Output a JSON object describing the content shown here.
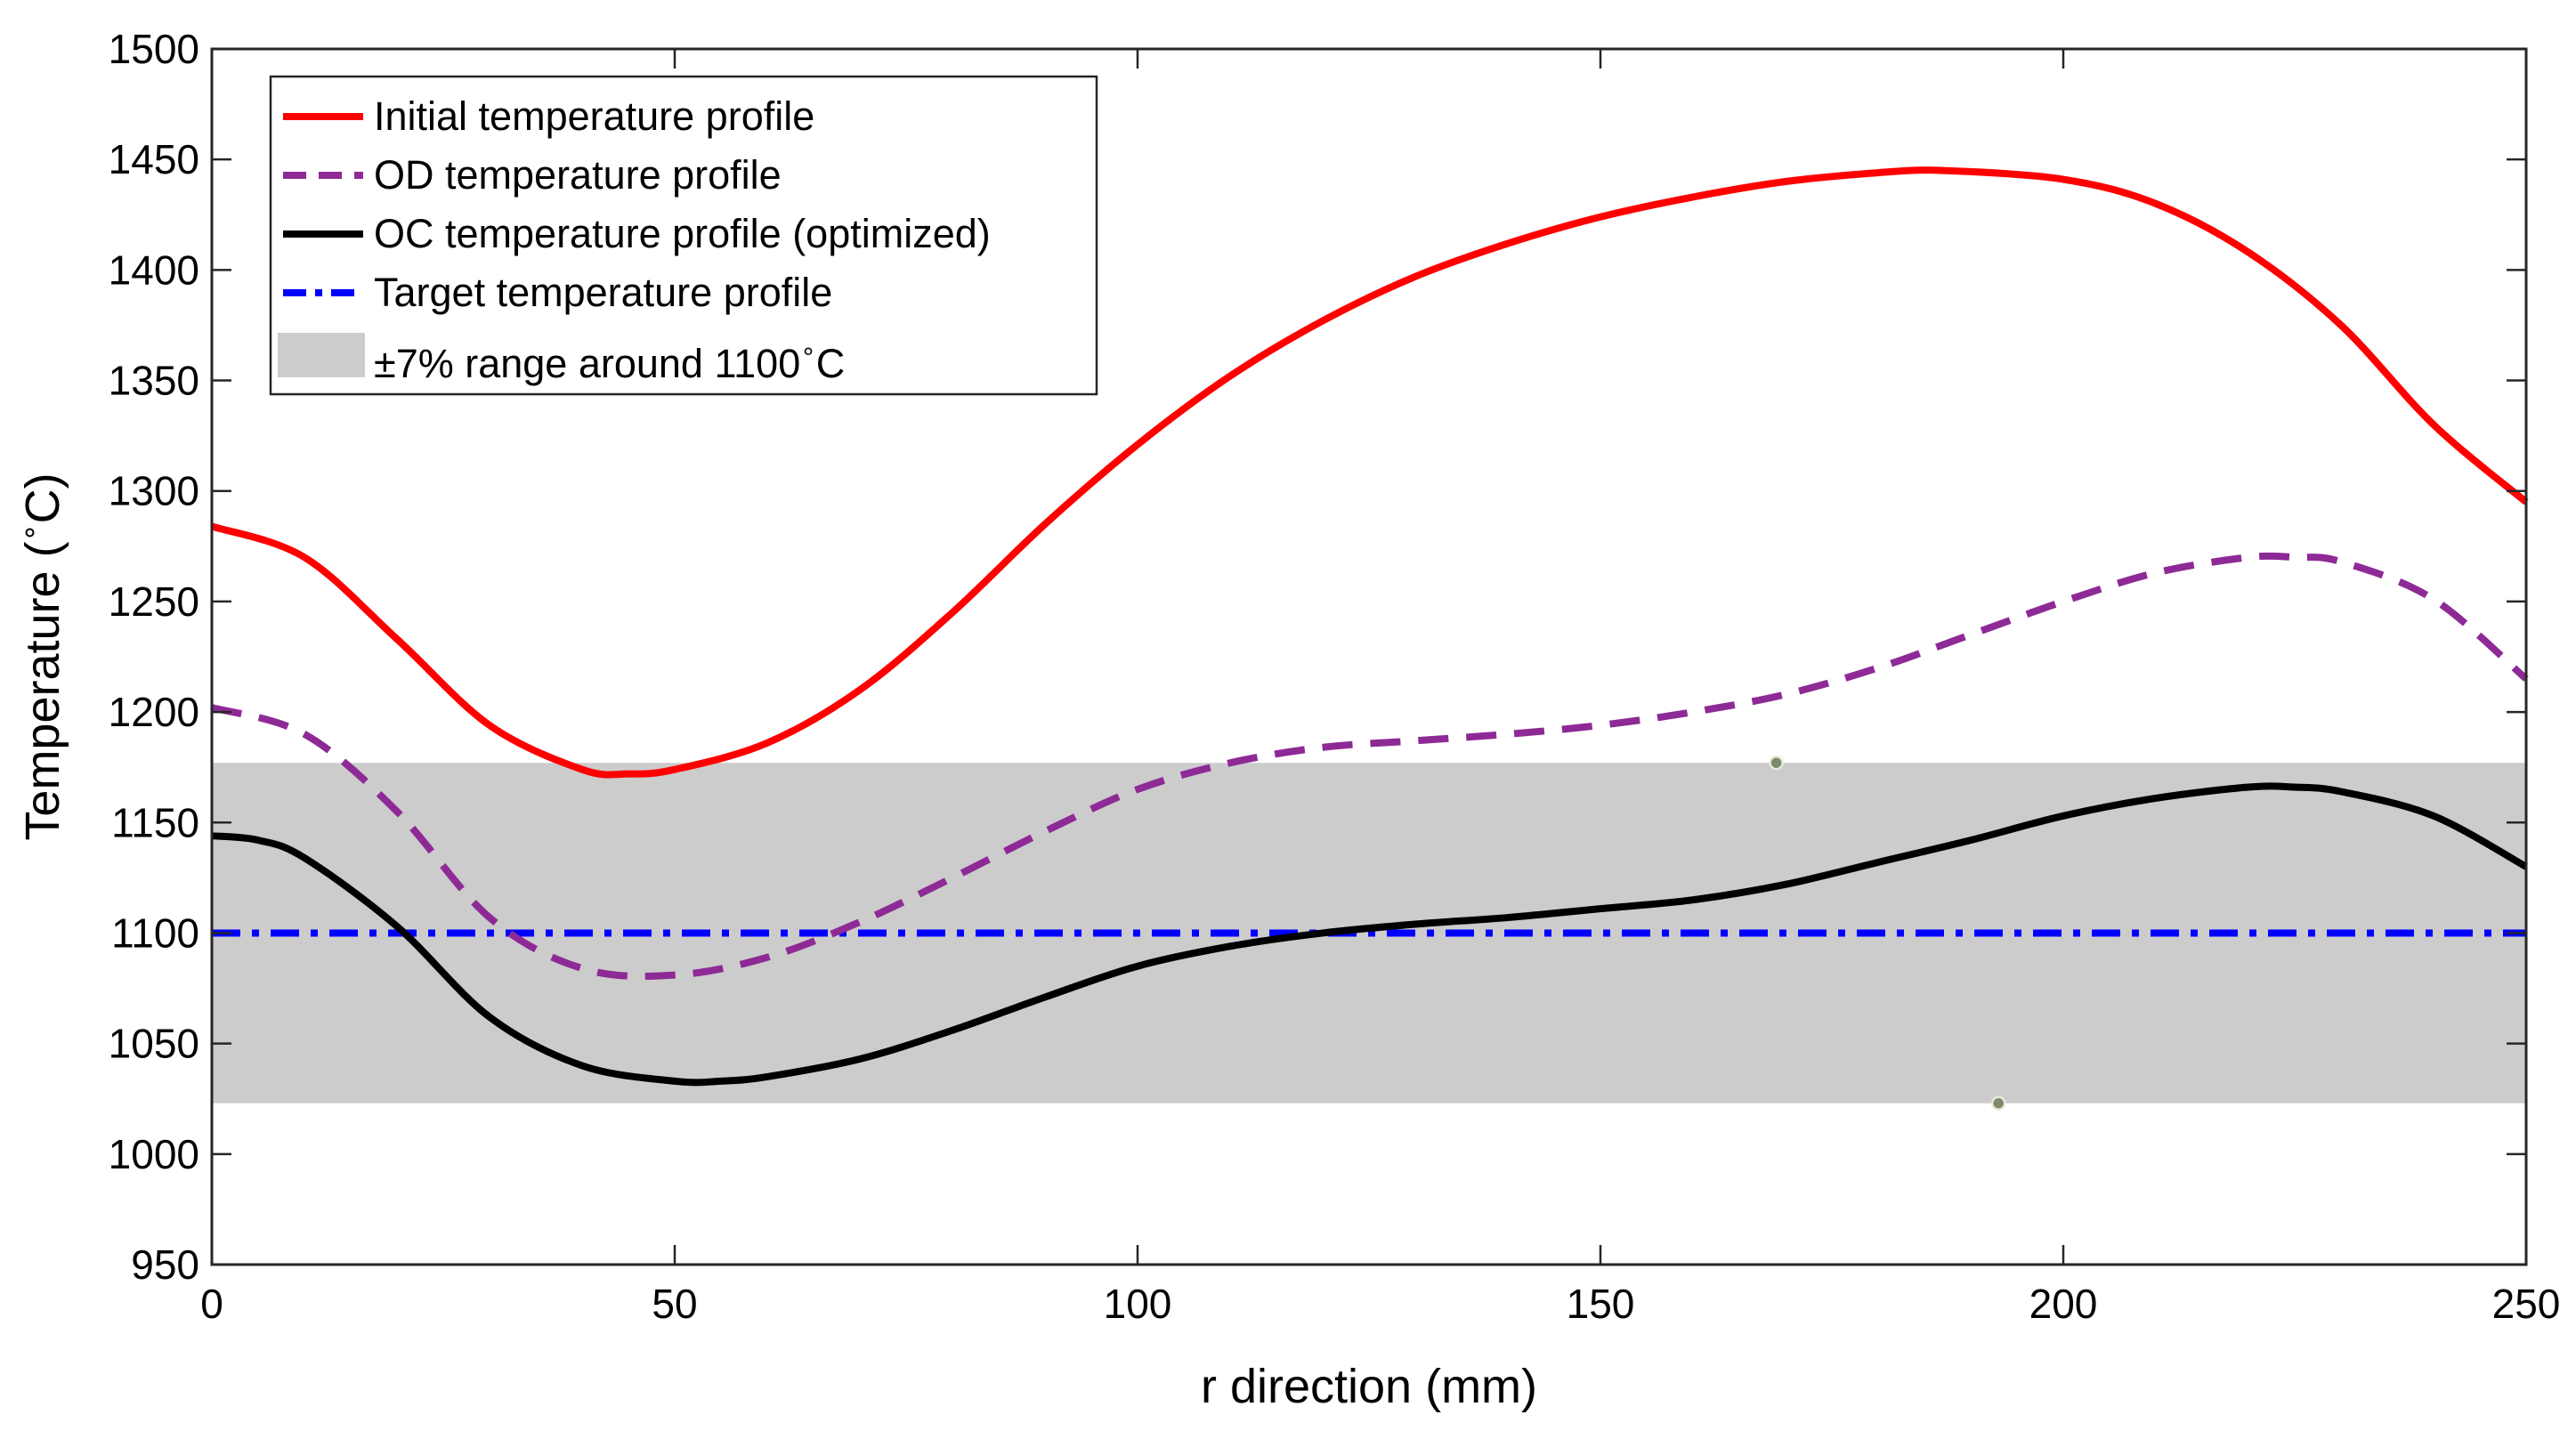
{
  "chart_data": {
    "type": "line",
    "title": "",
    "xlabel": "r direction (mm)",
    "ylabel": "Temperature (°C)",
    "ylabel_parts": {
      "before": "Temperature (",
      "degree": "∘",
      "after": "C)"
    },
    "xlim": [
      0,
      250
    ],
    "ylim": [
      950,
      1500
    ],
    "xticks": [
      0,
      50,
      100,
      150,
      200,
      250
    ],
    "yticks": [
      950,
      1000,
      1050,
      1100,
      1150,
      1200,
      1250,
      1300,
      1350,
      1400,
      1450,
      1500
    ],
    "grid": false,
    "legend_position": "top-left",
    "band": {
      "name": "±7% range around 1100°C",
      "legend_parts": {
        "before": "±7% range around 1100",
        "degree": "∘",
        "after": "C"
      },
      "low": 1023,
      "high": 1177,
      "color": "#cccccc"
    },
    "markers": [
      {
        "x": 169,
        "y": 1177
      },
      {
        "x": 193,
        "y": 1023
      }
    ],
    "series": [
      {
        "name": "Initial temperature profile",
        "color": "#ff0000",
        "style": "solid",
        "x": [
          0,
          10,
          20,
          30,
          40,
          45,
          50,
          60,
          70,
          80,
          90,
          100,
          110,
          120,
          130,
          140,
          150,
          160,
          170,
          180,
          187,
          200,
          210,
          220,
          230,
          240,
          250
        ],
        "y": [
          1284,
          1270,
          1233,
          1194,
          1174,
          1172,
          1174,
          1186,
          1210,
          1245,
          1285,
          1321,
          1352,
          1377,
          1397,
          1412,
          1424,
          1433,
          1440,
          1444,
          1445,
          1441,
          1430,
          1408,
          1375,
          1330,
          1295
        ]
      },
      {
        "name": "OD temperature profile",
        "color": "#8e2a96",
        "style": "dashed",
        "x": [
          0,
          10,
          20,
          30,
          40,
          50,
          60,
          70,
          80,
          90,
          100,
          110,
          120,
          130,
          140,
          150,
          160,
          170,
          180,
          190,
          200,
          210,
          220,
          225,
          230,
          240,
          250
        ],
        "y": [
          1202,
          1190,
          1155,
          1107,
          1084,
          1081,
          1089,
          1105,
          1125,
          1146,
          1165,
          1177,
          1184,
          1187,
          1190,
          1194,
          1200,
          1208,
          1220,
          1235,
          1250,
          1263,
          1270,
          1270,
          1268,
          1251,
          1215
        ]
      },
      {
        "name": "OC temperature profile (optimized)",
        "color": "#000000",
        "style": "solid",
        "x": [
          0,
          5,
          10,
          20,
          30,
          40,
          50,
          55,
          60,
          70,
          80,
          90,
          100,
          110,
          120,
          130,
          140,
          150,
          160,
          170,
          180,
          190,
          200,
          210,
          220,
          225,
          230,
          240,
          250
        ],
        "y": [
          1144,
          1142,
          1134,
          1103,
          1062,
          1040,
          1033,
          1033,
          1035,
          1043,
          1056,
          1071,
          1085,
          1094,
          1100,
          1104,
          1107,
          1111,
          1115,
          1122,
          1132,
          1142,
          1153,
          1161,
          1166,
          1166,
          1164,
          1153,
          1130
        ]
      },
      {
        "name": "Target temperature profile",
        "color": "#0000ff",
        "style": "dashdot",
        "x": [
          0,
          250
        ],
        "y": [
          1100,
          1100
        ]
      }
    ]
  }
}
